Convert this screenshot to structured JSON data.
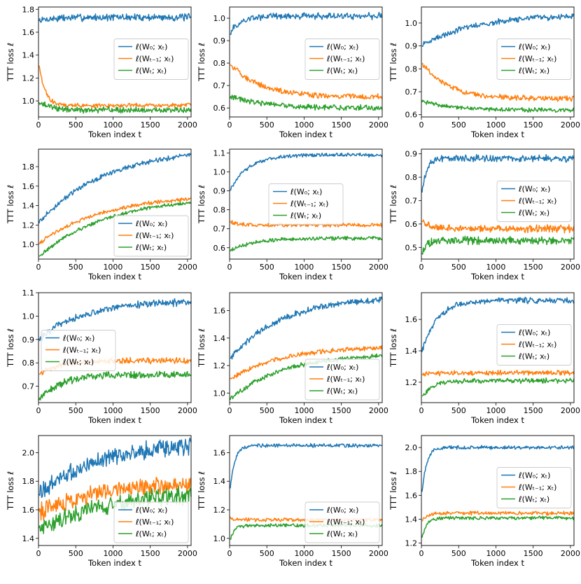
{
  "figure": {
    "ylabel": "TTT loss ℓ",
    "xlabel": "Token index t"
  },
  "chart_data": [
    {
      "type": "line",
      "xlim": [
        0,
        2048
      ],
      "ylim": [
        0.86,
        1.82
      ],
      "xticks": [
        0,
        500,
        1000,
        1500,
        2000
      ],
      "yticks": [
        1.0,
        1.2,
        1.4,
        1.6,
        1.8
      ],
      "legend": "center-right",
      "series": [
        {
          "name": "ℓ(W₀; xₜ)",
          "color": "#1f77b4",
          "start": 1.7,
          "end": 1.73,
          "amp": 0.025,
          "tau": 200
        },
        {
          "name": "ℓ(Wₜ₋₁; xₜ)",
          "color": "#ff7f0e",
          "start": 1.35,
          "end": 0.96,
          "amp": 0.015,
          "tau": 80
        },
        {
          "name": "ℓ(Wₜ; xₜ)",
          "color": "#2ca02c",
          "start": 1.0,
          "end": 0.92,
          "amp": 0.02,
          "tau": 150
        }
      ]
    },
    {
      "type": "line",
      "xlim": [
        0,
        2048
      ],
      "ylim": [
        0.56,
        1.05
      ],
      "xticks": [
        0,
        500,
        1000,
        1500,
        2000
      ],
      "yticks": [
        0.6,
        0.7,
        0.8,
        0.9,
        1.0
      ],
      "legend": "center-right",
      "series": [
        {
          "name": "ℓ(W₀; xₜ)",
          "color": "#1f77b4",
          "start": 0.93,
          "end": 1.01,
          "amp": 0.012,
          "tau": 150
        },
        {
          "name": "ℓ(Wₜ₋₁; xₜ)",
          "color": "#ff7f0e",
          "start": 0.8,
          "end": 0.65,
          "amp": 0.01,
          "tau": 400
        },
        {
          "name": "ℓ(Wₜ; xₜ)",
          "color": "#2ca02c",
          "start": 0.65,
          "end": 0.6,
          "amp": 0.01,
          "tau": 500
        }
      ]
    },
    {
      "type": "line",
      "xlim": [
        0,
        2048
      ],
      "ylim": [
        0.59,
        1.07
      ],
      "xticks": [
        0,
        500,
        1000,
        1500,
        2000
      ],
      "yticks": [
        0.6,
        0.7,
        0.8,
        0.9,
        1.0
      ],
      "legend": "center-right",
      "series": [
        {
          "name": "ℓ(W₀; xₜ)",
          "color": "#1f77b4",
          "start": 0.9,
          "end": 1.03,
          "amp": 0.01,
          "tau": 700
        },
        {
          "name": "ℓ(Wₜ₋₁; xₜ)",
          "color": "#ff7f0e",
          "start": 0.83,
          "end": 0.67,
          "amp": 0.009,
          "tau": 350
        },
        {
          "name": "ℓ(Wₜ; xₜ)",
          "color": "#2ca02c",
          "start": 0.66,
          "end": 0.62,
          "amp": 0.007,
          "tau": 400
        }
      ]
    },
    {
      "type": "line",
      "xlim": [
        0,
        2048
      ],
      "ylim": [
        0.85,
        1.98
      ],
      "xticks": [
        0,
        500,
        1000,
        1500,
        2000
      ],
      "yticks": [
        1.0,
        1.2,
        1.4,
        1.6,
        1.8
      ],
      "legend": "lower-right",
      "series": [
        {
          "name": "ℓ(W₀; xₜ)",
          "color": "#1f77b4",
          "start": 1.22,
          "end": 1.92,
          "amp": 0.02,
          "tau": 900
        },
        {
          "name": "ℓ(Wₜ₋₁; xₜ)",
          "color": "#ff7f0e",
          "start": 1.01,
          "end": 1.47,
          "amp": 0.015,
          "tau": 900
        },
        {
          "name": "ℓ(Wₜ; xₜ)",
          "color": "#2ca02c",
          "start": 0.87,
          "end": 1.43,
          "amp": 0.015,
          "tau": 900
        }
      ]
    },
    {
      "type": "line",
      "xlim": [
        0,
        2048
      ],
      "ylim": [
        0.54,
        1.12
      ],
      "xticks": [
        0,
        500,
        1000,
        1500,
        2000
      ],
      "yticks": [
        0.6,
        0.7,
        0.8,
        0.9,
        1.0,
        1.1
      ],
      "legend": "center",
      "series": [
        {
          "name": "ℓ(W₀; xₜ)",
          "color": "#1f77b4",
          "start": 0.9,
          "end": 1.09,
          "amp": 0.008,
          "tau": 250
        },
        {
          "name": "ℓ(Wₜ₋₁; xₜ)",
          "color": "#ff7f0e",
          "start": 0.74,
          "end": 0.72,
          "amp": 0.008,
          "tau": 80
        },
        {
          "name": "ℓ(Wₜ; xₜ)",
          "color": "#2ca02c",
          "start": 0.58,
          "end": 0.65,
          "amp": 0.008,
          "tau": 300
        }
      ]
    },
    {
      "type": "line",
      "xlim": [
        0,
        2048
      ],
      "ylim": [
        0.45,
        0.92
      ],
      "xticks": [
        0,
        500,
        1000,
        1500,
        2000
      ],
      "yticks": [
        0.5,
        0.6,
        0.7,
        0.8,
        0.9
      ],
      "legend": "center-right",
      "series": [
        {
          "name": "ℓ(W₀; xₜ)",
          "color": "#1f77b4",
          "start": 0.71,
          "end": 0.88,
          "amp": 0.012,
          "tau": 60
        },
        {
          "name": "ℓ(Wₜ₋₁; xₜ)",
          "color": "#ff7f0e",
          "start": 0.61,
          "end": 0.58,
          "amp": 0.013,
          "tau": 100
        },
        {
          "name": "ℓ(Wₜ; xₜ)",
          "color": "#2ca02c",
          "start": 0.47,
          "end": 0.53,
          "amp": 0.013,
          "tau": 60
        }
      ]
    },
    {
      "type": "line",
      "xlim": [
        0,
        2048
      ],
      "ylim": [
        0.63,
        1.1
      ],
      "xticks": [
        0,
        500,
        1000,
        1500,
        2000
      ],
      "yticks": [
        0.7,
        0.8,
        0.9,
        1.0,
        1.1
      ],
      "legend": "center-left",
      "series": [
        {
          "name": "ℓ(W₀; xₜ)",
          "color": "#1f77b4",
          "start": 0.9,
          "end": 1.06,
          "amp": 0.012,
          "tau": 600
        },
        {
          "name": "ℓ(Wₜ₋₁; xₜ)",
          "color": "#ff7f0e",
          "start": 0.75,
          "end": 0.81,
          "amp": 0.01,
          "tau": 300
        },
        {
          "name": "ℓ(Wₜ; xₜ)",
          "color": "#2ca02c",
          "start": 0.64,
          "end": 0.75,
          "amp": 0.012,
          "tau": 300
        }
      ]
    },
    {
      "type": "line",
      "xlim": [
        0,
        2048
      ],
      "ylim": [
        0.93,
        1.73
      ],
      "xticks": [
        0,
        500,
        1000,
        1500,
        2000
      ],
      "yticks": [
        1.0,
        1.2,
        1.4,
        1.6
      ],
      "legend": "lower-right",
      "series": [
        {
          "name": "ℓ(W₀; xₜ)",
          "color": "#1f77b4",
          "start": 1.25,
          "end": 1.68,
          "amp": 0.018,
          "tau": 700
        },
        {
          "name": "ℓ(Wₜ₋₁; xₜ)",
          "color": "#ff7f0e",
          "start": 1.1,
          "end": 1.33,
          "amp": 0.013,
          "tau": 700
        },
        {
          "name": "ℓ(Wₜ; xₜ)",
          "color": "#2ca02c",
          "start": 0.95,
          "end": 1.27,
          "amp": 0.013,
          "tau": 700
        }
      ]
    },
    {
      "type": "line",
      "xlim": [
        0,
        2048
      ],
      "ylim": [
        1.07,
        1.77
      ],
      "xticks": [
        0,
        500,
        1000,
        1500,
        2000
      ],
      "yticks": [
        1.2,
        1.4,
        1.6
      ],
      "legend": "center-right",
      "series": [
        {
          "name": "ℓ(W₀; xₜ)",
          "color": "#1f77b4",
          "start": 1.38,
          "end": 1.72,
          "amp": 0.015,
          "tau": 200
        },
        {
          "name": "ℓ(Wₜ₋₁; xₜ)",
          "color": "#ff7f0e",
          "start": 1.25,
          "end": 1.26,
          "amp": 0.012,
          "tau": 200
        },
        {
          "name": "ℓ(Wₜ; xₜ)",
          "color": "#2ca02c",
          "start": 1.1,
          "end": 1.21,
          "amp": 0.012,
          "tau": 150
        }
      ]
    },
    {
      "type": "line",
      "xlim": [
        0,
        2048
      ],
      "ylim": [
        1.35,
        2.12
      ],
      "xticks": [
        0,
        500,
        1000,
        1500,
        2000
      ],
      "yticks": [
        1.4,
        1.6,
        1.8,
        2.0
      ],
      "legend": "lower-right",
      "series": [
        {
          "name": "ℓ(W₀; xₜ)",
          "color": "#1f77b4",
          "start": 1.72,
          "end": 2.05,
          "amp": 0.05,
          "tau": 900
        },
        {
          "name": "ℓ(Wₜ₋₁; xₜ)",
          "color": "#ff7f0e",
          "start": 1.58,
          "end": 1.78,
          "amp": 0.05,
          "tau": 900
        },
        {
          "name": "ℓ(Wₜ; xₜ)",
          "color": "#2ca02c",
          "start": 1.45,
          "end": 1.7,
          "amp": 0.05,
          "tau": 900
        }
      ]
    },
    {
      "type": "line",
      "xlim": [
        0,
        2048
      ],
      "ylim": [
        0.95,
        1.72
      ],
      "xticks": [
        0,
        500,
        1000,
        1500,
        2000
      ],
      "yticks": [
        1.0,
        1.2,
        1.4,
        1.6
      ],
      "legend": "lower-right",
      "series": [
        {
          "name": "ℓ(W₀; xₜ)",
          "color": "#1f77b4",
          "start": 1.3,
          "end": 1.65,
          "amp": 0.01,
          "tau": 60
        },
        {
          "name": "ℓ(Wₜ₋₁; xₜ)",
          "color": "#ff7f0e",
          "start": 1.15,
          "end": 1.13,
          "amp": 0.01,
          "tau": 50
        },
        {
          "name": "ℓ(Wₜ; xₜ)",
          "color": "#2ca02c",
          "start": 0.97,
          "end": 1.09,
          "amp": 0.01,
          "tau": 50
        }
      ]
    },
    {
      "type": "line",
      "xlim": [
        0,
        2048
      ],
      "ylim": [
        1.18,
        2.1
      ],
      "xticks": [
        0,
        500,
        1000,
        1500,
        2000
      ],
      "yticks": [
        1.2,
        1.4,
        1.6,
        1.8,
        2.0
      ],
      "legend": "center-right",
      "series": [
        {
          "name": "ℓ(W₀; xₜ)",
          "color": "#1f77b4",
          "start": 1.57,
          "end": 2.0,
          "amp": 0.012,
          "tau": 60
        },
        {
          "name": "ℓ(Wₜ₋₁; xₜ)",
          "color": "#ff7f0e",
          "start": 1.37,
          "end": 1.45,
          "amp": 0.012,
          "tau": 60
        },
        {
          "name": "ℓ(Wₜ; xₜ)",
          "color": "#2ca02c",
          "start": 1.22,
          "end": 1.41,
          "amp": 0.012,
          "tau": 60
        }
      ]
    }
  ]
}
